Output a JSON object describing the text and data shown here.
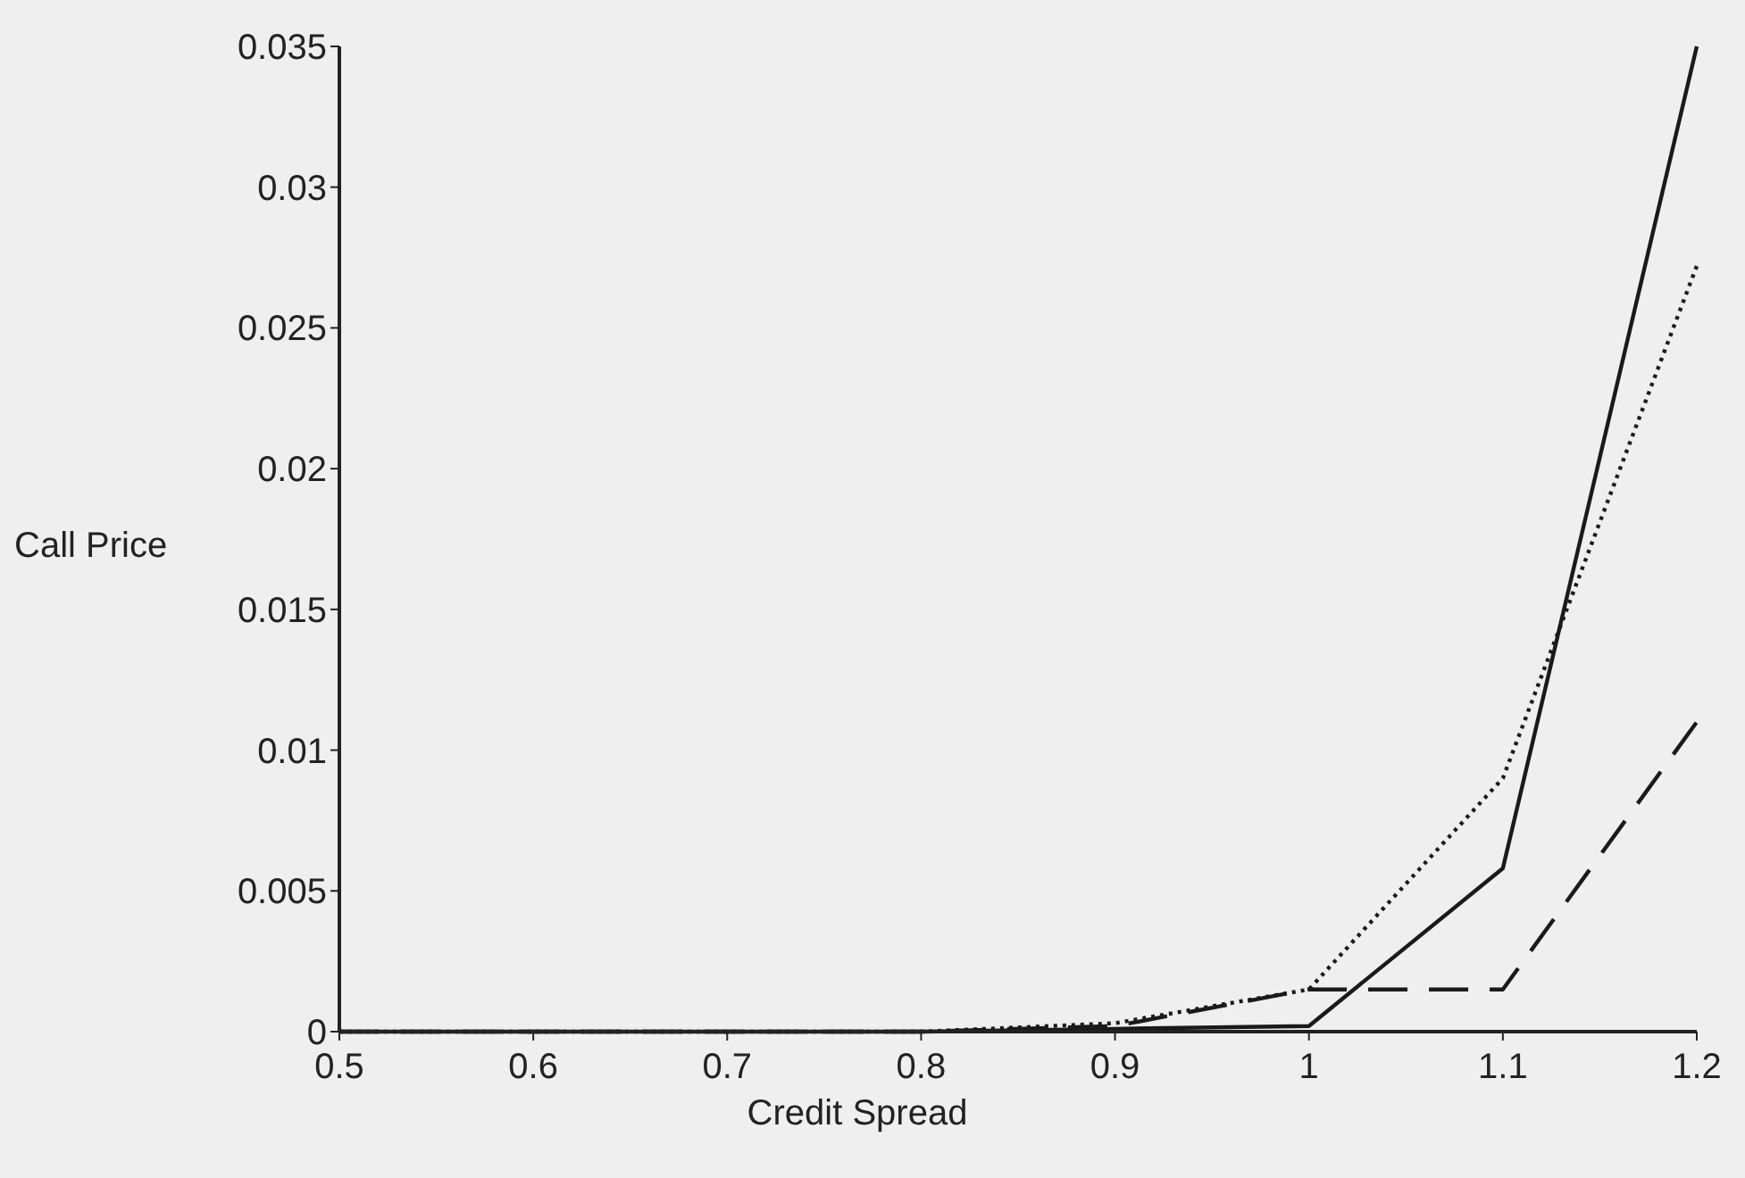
{
  "chart_data": {
    "type": "line",
    "xlabel": "Credit Spread",
    "ylabel": "Call Price",
    "x": [
      0.5,
      0.6,
      0.7,
      0.8,
      0.9,
      1.0,
      1.1,
      1.2
    ],
    "series": [
      {
        "color": "#1a1a1a",
        "line_style": "solid",
        "values": [
          0,
          0,
          0,
          0,
          0.0001,
          0.0002,
          0.0058,
          0.035
        ]
      },
      {
        "color": "#1a1a1a",
        "line_style": "dotted",
        "values": [
          0,
          0,
          0,
          0,
          0.0003,
          0.0015,
          0.009,
          0.0272
        ]
      },
      {
        "color": "#1a1a1a",
        "line_style": "dashed",
        "values": [
          0,
          0,
          0,
          0,
          0.0002,
          0.0015,
          0.0015,
          0.011
        ]
      }
    ],
    "xlim": [
      0.5,
      1.2
    ],
    "xticks": [
      0.5,
      0.6,
      0.7,
      0.8,
      0.9,
      1,
      1.1,
      1.2
    ],
    "ylim": [
      0,
      0.035
    ],
    "yticks": [
      0,
      0.005,
      0.01,
      0.015,
      0.02,
      0.025,
      0.03,
      0.035
    ],
    "grid": false,
    "marker": "none"
  }
}
